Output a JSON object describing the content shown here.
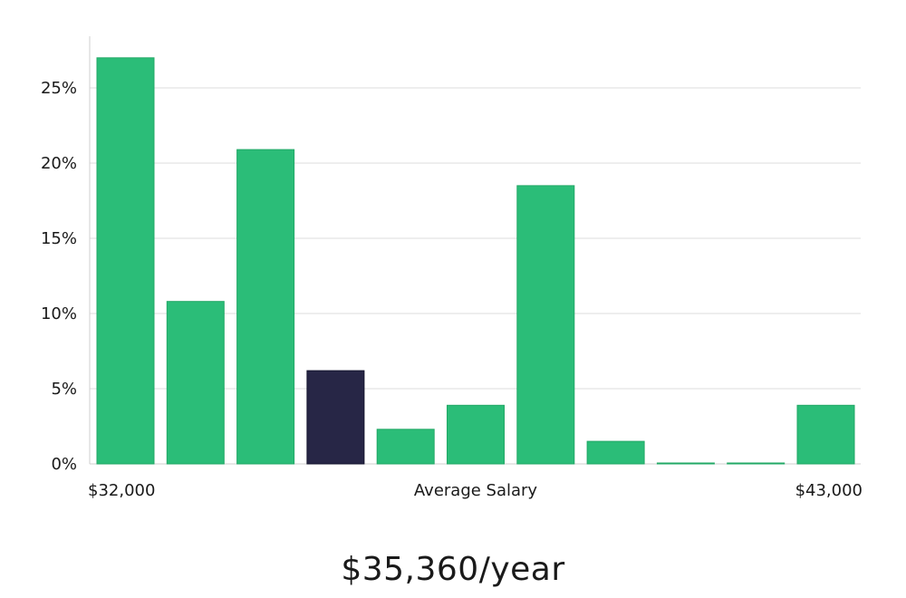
{
  "chart_data": {
    "type": "bar",
    "bins": 11,
    "values": [
      27.0,
      10.8,
      20.9,
      6.2,
      2.3,
      3.9,
      18.5,
      1.5,
      0.05,
      0.05,
      3.9
    ],
    "highlight_index": 3,
    "colors": {
      "bar": "#2bbd78",
      "highlight": "#272646",
      "grid": "#dcdcdc",
      "axis": "#cfcfcf"
    },
    "ylim": [
      0,
      28.5
    ],
    "yticks": [
      0,
      5,
      10,
      15,
      20,
      25
    ],
    "ytick_labels": [
      "0%",
      "5%",
      "10%",
      "15%",
      "20%",
      "25%"
    ],
    "x_min_label": "$32,000",
    "x_max_label": "$43,000",
    "xlabel": "Average Salary",
    "grid": true,
    "legend": "none"
  },
  "summary": {
    "salary_text": "$35,360/year"
  }
}
